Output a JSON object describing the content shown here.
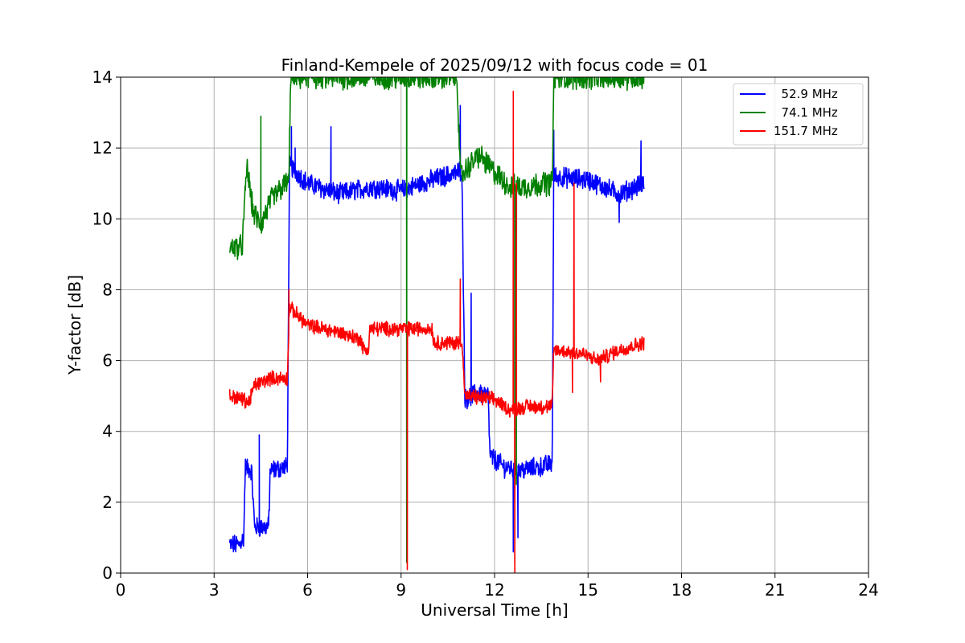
{
  "chart_data": {
    "type": "line",
    "title": "Finland-Kempele of 2025/09/12 with focus code = 01",
    "xlabel": "Universal Time [h]",
    "ylabel": "Y-factor [dB]",
    "xlim": [
      0,
      24
    ],
    "ylim": [
      0,
      14
    ],
    "xticks": [
      0,
      3,
      6,
      9,
      12,
      15,
      18,
      21,
      24
    ],
    "yticks": [
      0,
      2,
      4,
      6,
      8,
      10,
      12,
      14
    ],
    "xtick_labels": [
      "0",
      "3",
      "6",
      "9",
      "12",
      "15",
      "18",
      "21",
      "24"
    ],
    "ytick_labels": [
      "0",
      "2",
      "4",
      "6",
      "8",
      "10",
      "12",
      "14"
    ],
    "grid": true,
    "legend_position": "top-right",
    "legend": [
      "  52.9 MHz",
      "  74.1 MHz",
      "151.7 MHz"
    ],
    "series": [
      {
        "name": "52.9 MHz",
        "color": "#0000ff",
        "noise": 0.25,
        "points": [
          [
            3.5,
            0.8
          ],
          [
            3.8,
            0.8
          ],
          [
            3.95,
            1.0
          ],
          [
            4.0,
            3.0
          ],
          [
            4.2,
            2.9
          ],
          [
            4.3,
            1.3
          ],
          [
            4.75,
            1.3
          ],
          [
            4.8,
            2.9
          ],
          [
            5.35,
            3.0
          ],
          [
            5.42,
            11.5
          ],
          [
            6.0,
            11.0
          ],
          [
            7.0,
            10.7
          ],
          [
            8.0,
            10.9
          ],
          [
            9.0,
            10.8
          ],
          [
            10.0,
            11.1
          ],
          [
            10.8,
            11.3
          ],
          [
            10.95,
            11.4
          ],
          [
            11.05,
            4.9
          ],
          [
            11.5,
            5.1
          ],
          [
            11.8,
            5.0
          ],
          [
            11.85,
            3.3
          ],
          [
            12.3,
            3.0
          ],
          [
            12.8,
            2.9
          ],
          [
            13.5,
            3.0
          ],
          [
            13.85,
            3.1
          ],
          [
            13.9,
            11.2
          ],
          [
            15.0,
            11.1
          ],
          [
            16.0,
            10.7
          ],
          [
            16.8,
            11.0
          ]
        ],
        "spikes": [
          [
            4.45,
            3.9
          ],
          [
            5.48,
            12.6
          ],
          [
            5.6,
            12.0
          ],
          [
            6.75,
            12.6
          ],
          [
            10.9,
            13.2
          ],
          [
            11.25,
            7.9
          ],
          [
            12.6,
            0.6
          ],
          [
            12.65,
            2.0
          ],
          [
            12.75,
            1.0
          ],
          [
            13.9,
            12.5
          ],
          [
            16.0,
            9.9
          ],
          [
            16.7,
            12.2
          ]
        ]
      },
      {
        "name": "74.1 MHz",
        "color": "#008000",
        "noise": 0.3,
        "points": [
          [
            3.5,
            9.2
          ],
          [
            3.9,
            9.2
          ],
          [
            4.05,
            11.5
          ],
          [
            4.25,
            10.2
          ],
          [
            4.5,
            9.8
          ],
          [
            4.8,
            10.5
          ],
          [
            5.3,
            11.0
          ],
          [
            5.4,
            11.0
          ],
          [
            5.45,
            14.0
          ],
          [
            5.8,
            14.0
          ],
          [
            9.15,
            14.0
          ],
          [
            9.2,
            14.0
          ],
          [
            10.8,
            14.0
          ],
          [
            10.9,
            11.2
          ],
          [
            11.5,
            11.8
          ],
          [
            12.0,
            11.3
          ],
          [
            12.5,
            10.9
          ],
          [
            13.0,
            10.9
          ],
          [
            13.5,
            11.0
          ],
          [
            13.85,
            11.0
          ],
          [
            13.9,
            14.0
          ],
          [
            16.8,
            14.0
          ]
        ],
        "spikes": [
          [
            4.5,
            12.9
          ],
          [
            9.18,
            0.3
          ],
          [
            12.65,
            0.3
          ],
          [
            12.7,
            2.5
          ]
        ]
      },
      {
        "name": "151.7 MHz",
        "color": "#ff0000",
        "noise": 0.18,
        "points": [
          [
            3.5,
            5.0
          ],
          [
            3.95,
            4.9
          ],
          [
            4.1,
            4.8
          ],
          [
            4.3,
            5.3
          ],
          [
            4.8,
            5.5
          ],
          [
            5.35,
            5.5
          ],
          [
            5.42,
            7.5
          ],
          [
            6.0,
            7.0
          ],
          [
            7.0,
            6.8
          ],
          [
            7.7,
            6.6
          ],
          [
            7.8,
            6.3
          ],
          [
            7.95,
            6.3
          ],
          [
            8.0,
            6.9
          ],
          [
            9.0,
            6.9
          ],
          [
            10.0,
            6.9
          ],
          [
            10.05,
            6.5
          ],
          [
            10.8,
            6.5
          ],
          [
            10.95,
            6.6
          ],
          [
            11.05,
            5.0
          ],
          [
            12.0,
            4.9
          ],
          [
            12.5,
            4.6
          ],
          [
            13.0,
            4.7
          ],
          [
            13.85,
            4.7
          ],
          [
            13.9,
            6.3
          ],
          [
            14.8,
            6.2
          ],
          [
            15.3,
            6.0
          ],
          [
            16.0,
            6.3
          ],
          [
            16.8,
            6.5
          ]
        ],
        "spikes": [
          [
            5.4,
            8.0
          ],
          [
            9.2,
            0.1
          ],
          [
            10.9,
            8.3
          ],
          [
            12.6,
            13.6
          ],
          [
            12.65,
            0.0
          ],
          [
            12.7,
            11.0
          ],
          [
            14.5,
            5.1
          ],
          [
            14.55,
            11.0
          ],
          [
            15.4,
            5.4
          ]
        ]
      }
    ]
  }
}
